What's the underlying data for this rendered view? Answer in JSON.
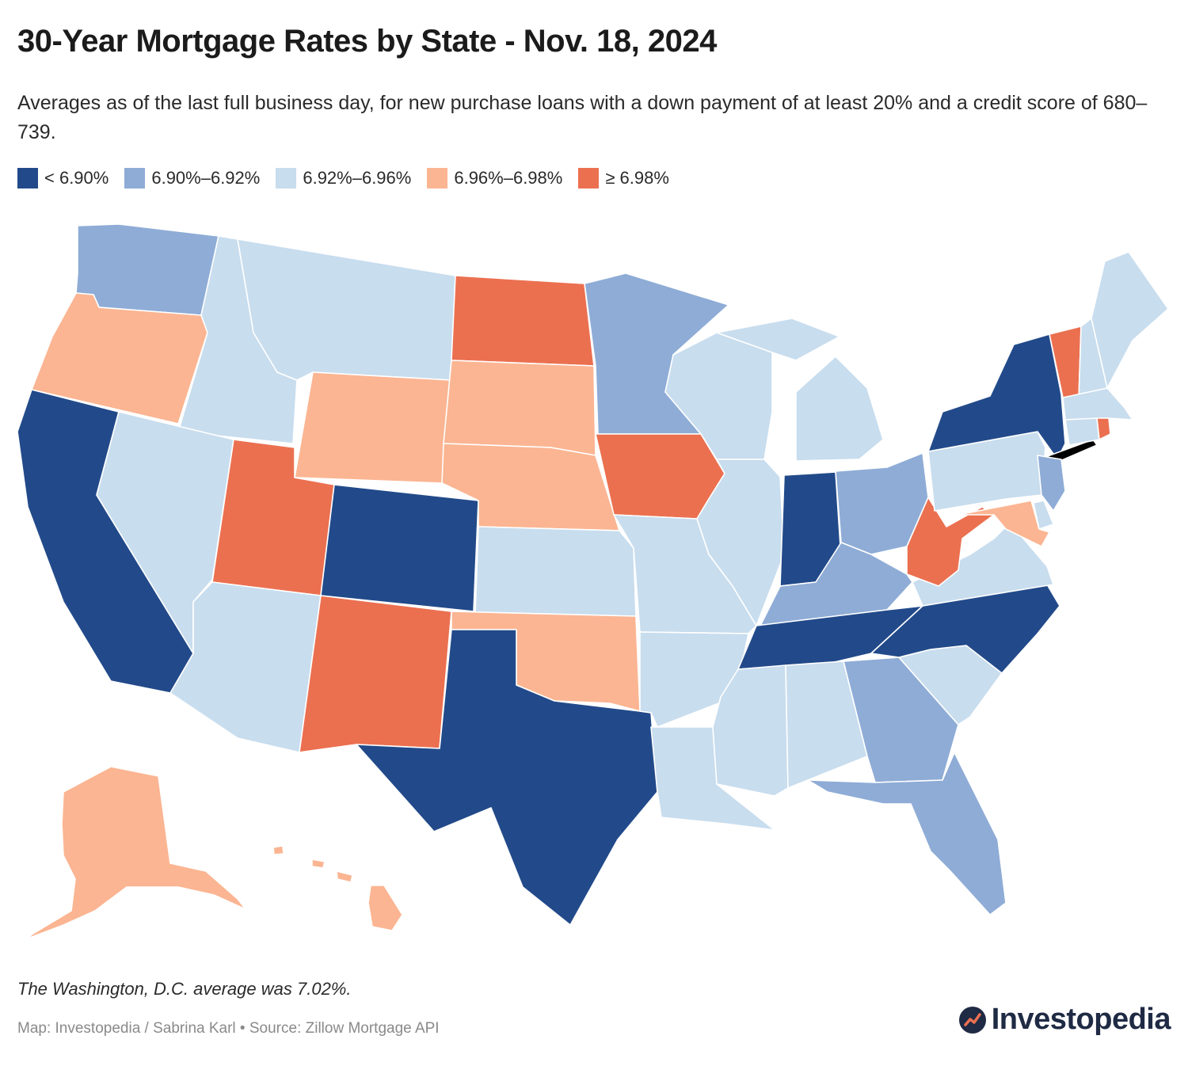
{
  "title": "30-Year Mortgage Rates by State - Nov. 18, 2024",
  "subtitle": "Averages as of the last full business day, for new purchase loans with a down payment of at least 20% and a credit score of 680–739.",
  "legend": [
    {
      "label": "< 6.90%",
      "color": "#224a8a"
    },
    {
      "label": "6.90%–6.92%",
      "color": "#8eacd6"
    },
    {
      "label": "6.92%–6.96%",
      "color": "#c8ddee"
    },
    {
      "label": "6.96%–6.98%",
      "color": "#fbb592"
    },
    {
      "label": "≥ 6.98%",
      "color": "#eb7050"
    }
  ],
  "states": [
    {
      "code": "WA",
      "bucket": 1
    },
    {
      "code": "OR",
      "bucket": 3
    },
    {
      "code": "CA",
      "bucket": 0
    },
    {
      "code": "ID",
      "bucket": 2
    },
    {
      "code": "NV",
      "bucket": 2
    },
    {
      "code": "MT",
      "bucket": 2
    },
    {
      "code": "WY",
      "bucket": 3
    },
    {
      "code": "UT",
      "bucket": 4
    },
    {
      "code": "AZ",
      "bucket": 2
    },
    {
      "code": "CO",
      "bucket": 0
    },
    {
      "code": "NM",
      "bucket": 4
    },
    {
      "code": "ND",
      "bucket": 4
    },
    {
      "code": "SD",
      "bucket": 3
    },
    {
      "code": "NE",
      "bucket": 3
    },
    {
      "code": "KS",
      "bucket": 2
    },
    {
      "code": "OK",
      "bucket": 3
    },
    {
      "code": "TX",
      "bucket": 0
    },
    {
      "code": "MN",
      "bucket": 1
    },
    {
      "code": "IA",
      "bucket": 4
    },
    {
      "code": "MO",
      "bucket": 2
    },
    {
      "code": "AR",
      "bucket": 2
    },
    {
      "code": "LA",
      "bucket": 2
    },
    {
      "code": "WI",
      "bucket": 2
    },
    {
      "code": "IL",
      "bucket": 2
    },
    {
      "code": "MI",
      "bucket": 2
    },
    {
      "code": "IN",
      "bucket": 0
    },
    {
      "code": "OH",
      "bucket": 1
    },
    {
      "code": "KY",
      "bucket": 1
    },
    {
      "code": "TN",
      "bucket": 0
    },
    {
      "code": "MS",
      "bucket": 2
    },
    {
      "code": "AL",
      "bucket": 2
    },
    {
      "code": "GA",
      "bucket": 1
    },
    {
      "code": "FL",
      "bucket": 1
    },
    {
      "code": "SC",
      "bucket": 2
    },
    {
      "code": "NC",
      "bucket": 0
    },
    {
      "code": "VA",
      "bucket": 2
    },
    {
      "code": "WV",
      "bucket": 4
    },
    {
      "code": "PA",
      "bucket": 2
    },
    {
      "code": "NY",
      "bucket": 0
    },
    {
      "code": "VT",
      "bucket": 4
    },
    {
      "code": "NH",
      "bucket": 2
    },
    {
      "code": "ME",
      "bucket": 2
    },
    {
      "code": "MA",
      "bucket": 2
    },
    {
      "code": "CT",
      "bucket": 2
    },
    {
      "code": "RI",
      "bucket": 4
    },
    {
      "code": "NJ",
      "bucket": 1
    },
    {
      "code": "DE",
      "bucket": 2
    },
    {
      "code": "MD",
      "bucket": 3
    },
    {
      "code": "AK",
      "bucket": 3
    },
    {
      "code": "HI",
      "bucket": 3
    }
  ],
  "note": "The Washington, D.C. average was 7.02%.",
  "source": "Map: Investopedia / Sabrina Karl • Source: Zillow Mortgage API",
  "brand": "Investopedia"
}
